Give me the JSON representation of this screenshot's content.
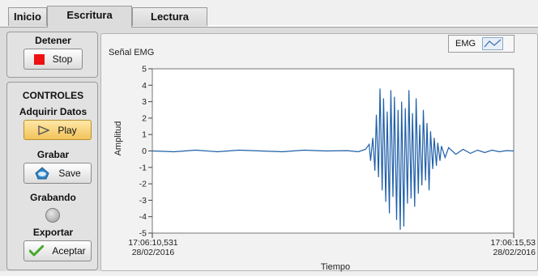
{
  "tabs": [
    {
      "label": "Inicio"
    },
    {
      "label": "Escritura"
    },
    {
      "label": "Lectura"
    }
  ],
  "controls": {
    "stop_title": "Detener",
    "stop_button": "Stop",
    "section_title": "CONTROLES",
    "acquire_title": "Adquirir Datos",
    "play_button": "Play",
    "record_title": "Grabar",
    "save_button": "Save",
    "recording_title": "Grabando",
    "export_title": "Exportar",
    "accept_button": "Aceptar"
  },
  "icons": {
    "stop": "stop-square-icon",
    "play": "play-triangle-icon",
    "save": "save-disk-icon",
    "accept": "checkmark-icon",
    "legend": "line-plot-icon"
  },
  "colors": {
    "signal": "#1f5fa8",
    "stop_red": "#ee1111",
    "accent_gold": "#f1c35a"
  },
  "chart_data": {
    "type": "line",
    "title": "Señal EMG",
    "xlabel": "Tiempo",
    "ylabel": "Amplitud",
    "ylim": [
      -5,
      5
    ],
    "yticks": [
      5,
      4,
      3,
      2,
      1,
      0,
      -1,
      -2,
      -3,
      -4,
      -5
    ],
    "x_start_label": "17:06:10,531",
    "x_start_date": "28/02/2016",
    "x_end_label": "17:06:15,53",
    "x_end_date": "28/02/2016",
    "series": [
      {
        "name": "EMG",
        "x": [
          0.0,
          0.3,
          0.6,
          0.9,
          1.2,
          1.5,
          1.8,
          2.1,
          2.4,
          2.7,
          2.85,
          2.95,
          3.0,
          3.02,
          3.05,
          3.08,
          3.1,
          3.13,
          3.15,
          3.18,
          3.2,
          3.23,
          3.25,
          3.28,
          3.3,
          3.33,
          3.35,
          3.38,
          3.4,
          3.43,
          3.45,
          3.48,
          3.5,
          3.53,
          3.55,
          3.58,
          3.6,
          3.63,
          3.65,
          3.68,
          3.7,
          3.73,
          3.75,
          3.78,
          3.8,
          3.83,
          3.85,
          3.88,
          3.9,
          3.93,
          3.95,
          3.98,
          4.0,
          4.05,
          4.1,
          4.2,
          4.3,
          4.4,
          4.5,
          4.6,
          4.7,
          4.8,
          4.9,
          5.0
        ],
        "values": [
          0.0,
          -0.05,
          0.05,
          -0.05,
          0.05,
          0.0,
          -0.05,
          0.05,
          0.0,
          0.02,
          -0.05,
          0.1,
          0.4,
          -0.6,
          0.8,
          -1.2,
          2.2,
          -1.6,
          3.8,
          -2.4,
          3.2,
          -3.1,
          2.4,
          -3.8,
          3.7,
          -2.8,
          3.3,
          -4.2,
          2.5,
          -4.8,
          3.0,
          -4.6,
          2.6,
          -3.2,
          3.7,
          -2.9,
          2.3,
          -3.4,
          3.2,
          -2.6,
          1.6,
          -2.1,
          2.5,
          -1.8,
          1.7,
          -2.4,
          1.2,
          -1.1,
          0.8,
          -0.9,
          0.5,
          -0.6,
          0.3,
          -0.4,
          0.2,
          -0.2,
          0.1,
          -0.15,
          0.05,
          -0.1,
          0.05,
          -0.05,
          0.02,
          0.0
        ]
      }
    ]
  }
}
